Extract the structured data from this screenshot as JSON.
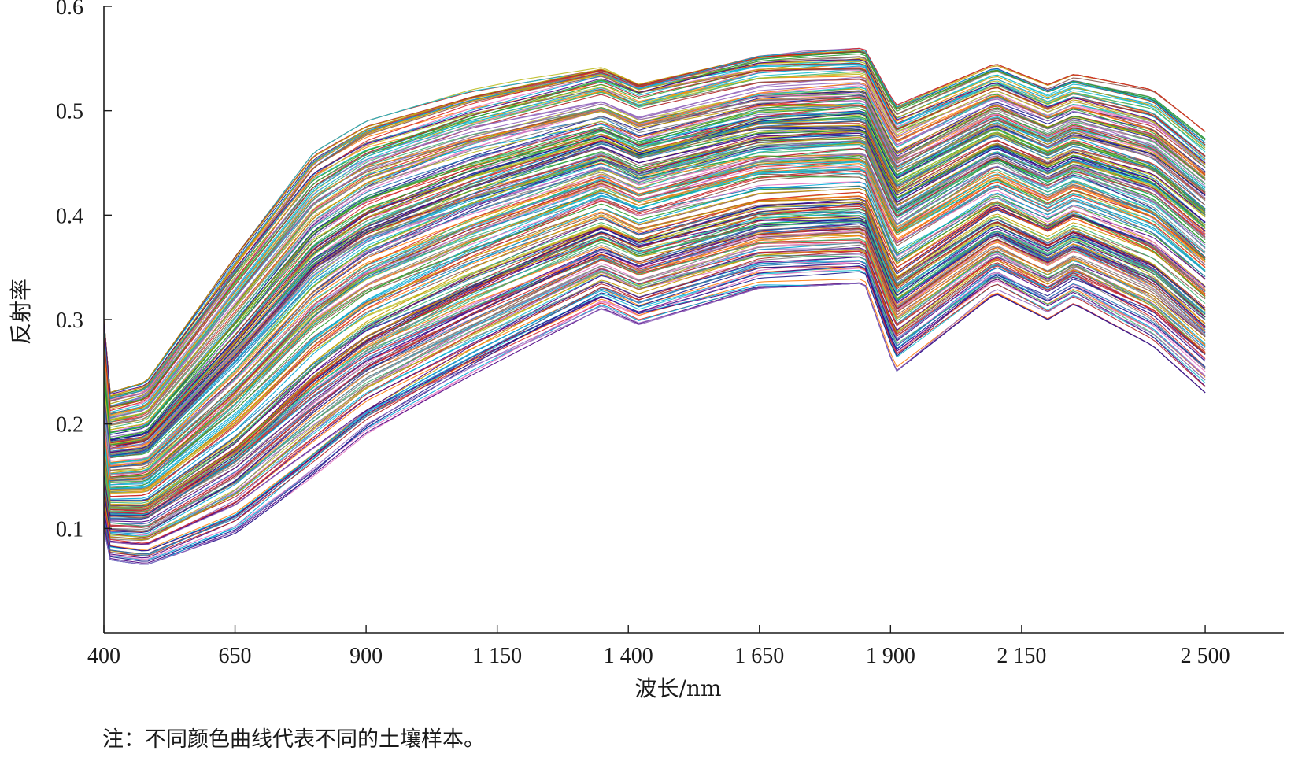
{
  "chart_data": {
    "type": "line",
    "title": "",
    "xlabel": "波长/nm",
    "ylabel": "反射率",
    "note": "注：不同颜色曲线代表不同的土壤样本。",
    "xlim": [
      400,
      2650
    ],
    "ylim": [
      0,
      0.6
    ],
    "x_ticks": [
      400,
      650,
      900,
      1150,
      1400,
      1650,
      1900,
      2150,
      2500
    ],
    "x_tick_labels": [
      "400",
      "650",
      "900",
      "1 150",
      "1 400",
      "1 650",
      "1 900",
      "2 150",
      "2 500"
    ],
    "y_ticks": [
      0.1,
      0.2,
      0.3,
      0.4,
      0.5,
      0.6
    ],
    "y_tick_labels": [
      "0.1",
      "0.2",
      "0.3",
      "0.4",
      "0.5",
      "0.6"
    ],
    "grid": false,
    "legend": "none",
    "spectra_envelope": {
      "wavelength": [
        400,
        410,
        480,
        650,
        800,
        900,
        1100,
        1350,
        1420,
        1650,
        1850,
        1910,
        2100,
        2200,
        2250,
        2400,
        2500
      ],
      "upper": [
        0.3,
        0.23,
        0.24,
        0.36,
        0.46,
        0.49,
        0.52,
        0.545,
        0.53,
        0.555,
        0.56,
        0.505,
        0.545,
        0.525,
        0.535,
        0.52,
        0.48
      ],
      "lower": [
        0.1,
        0.07,
        0.065,
        0.095,
        0.15,
        0.19,
        0.245,
        0.31,
        0.295,
        0.33,
        0.335,
        0.25,
        0.325,
        0.3,
        0.315,
        0.275,
        0.23
      ]
    },
    "sample_count_drawn": 260,
    "series_colors": [
      "#1f77b4",
      "#d62728",
      "#2ca02c",
      "#ff7f0e",
      "#9467bd",
      "#17becf",
      "#bcbd22",
      "#8c564b",
      "#e377c2",
      "#1a1a8c",
      "#00a6d6",
      "#c49a00",
      "#7f7f7f",
      "#3cb371",
      "#b22222",
      "#4b0082"
    ],
    "axis_color": "#1a1a1a"
  }
}
